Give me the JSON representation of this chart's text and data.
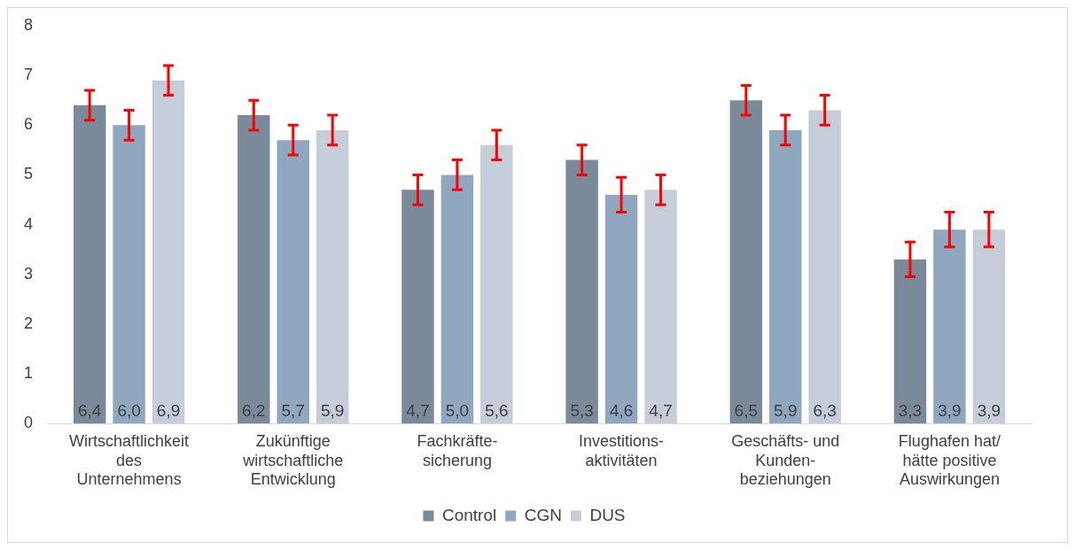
{
  "chart_data": {
    "type": "bar",
    "categories": [
      "Wirtschaftlichkeit des Unternehmens",
      "Zukünftige wirtschaftliche Entwicklung",
      "Fachkräfte-sicherung",
      "Investitions-aktivitäten",
      "Geschäfts- und Kunden-beziehungen",
      "Flughafen hat/ hätte positive Auswirkungen"
    ],
    "series": [
      {
        "name": "Control",
        "color": "#7a8a9a",
        "values": [
          6.4,
          6.2,
          4.7,
          5.3,
          6.5,
          3.3
        ],
        "value_labels": [
          "6,4",
          "6,2",
          "4,7",
          "5,3",
          "6,5",
          "3,3"
        ],
        "errors": [
          0.3,
          0.3,
          0.3,
          0.3,
          0.3,
          0.35
        ]
      },
      {
        "name": "CGN",
        "color": "#8fa7bf",
        "values": [
          6.0,
          5.7,
          5.0,
          4.6,
          5.9,
          3.9
        ],
        "value_labels": [
          "6,0",
          "5,7",
          "5,0",
          "4,6",
          "5,9",
          "3,9"
        ],
        "errors": [
          0.3,
          0.3,
          0.3,
          0.35,
          0.3,
          0.35
        ]
      },
      {
        "name": "DUS",
        "color": "#c5ced8",
        "values": [
          6.9,
          5.9,
          5.6,
          4.7,
          6.3,
          3.9
        ],
        "value_labels": [
          "6,9",
          "5,9",
          "5,6",
          "4,7",
          "6,3",
          "3,9"
        ],
        "errors": [
          0.3,
          0.3,
          0.3,
          0.3,
          0.3,
          0.35
        ]
      }
    ],
    "ylim": [
      0,
      8
    ],
    "yticks": [
      0,
      1,
      2,
      3,
      4,
      5,
      6,
      7,
      8
    ],
    "grid": false,
    "legend": "bottom"
  }
}
